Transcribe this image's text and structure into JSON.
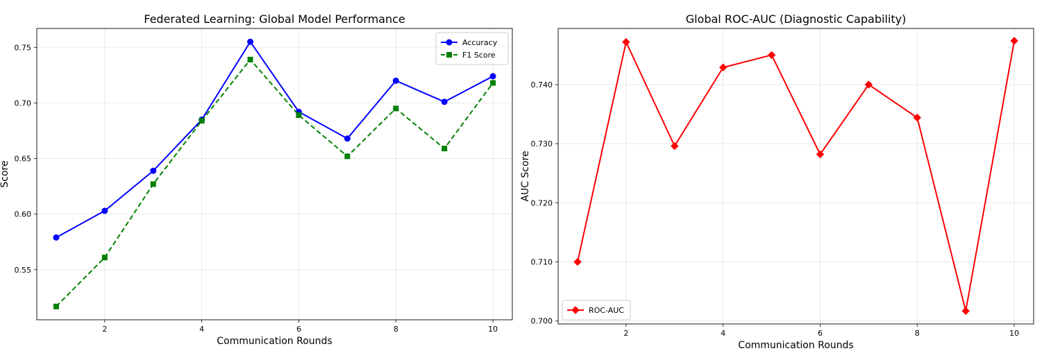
{
  "chart_data": [
    {
      "type": "line",
      "title": "Federated Learning: Global Model Performance",
      "xlabel": "Communication Rounds",
      "ylabel": "Score",
      "x": [
        1,
        2,
        3,
        4,
        5,
        6,
        7,
        8,
        9,
        10
      ],
      "xlim": [
        0.6,
        10.4
      ],
      "ylim": [
        0.505,
        0.767
      ],
      "xticks": [
        2,
        4,
        6,
        8,
        10
      ],
      "yticks": [
        0.55,
        0.6,
        0.65,
        0.7,
        0.75
      ],
      "grid": true,
      "legend_position": "upper right",
      "series": [
        {
          "name": "Accuracy",
          "color": "#0000ff",
          "marker": "circle",
          "linestyle": "solid",
          "values": [
            0.579,
            0.603,
            0.639,
            0.685,
            0.755,
            0.692,
            0.668,
            0.72,
            0.701,
            0.724
          ]
        },
        {
          "name": "F1 Score",
          "color": "#008000",
          "marker": "square",
          "linestyle": "dashed",
          "values": [
            0.517,
            0.561,
            0.627,
            0.684,
            0.739,
            0.689,
            0.652,
            0.695,
            0.659,
            0.718
          ]
        }
      ]
    },
    {
      "type": "line",
      "title": "Global ROC-AUC (Diagnostic Capability)",
      "xlabel": "Communication Rounds",
      "ylabel": "AUC Score",
      "x": [
        1,
        2,
        3,
        4,
        5,
        6,
        7,
        8,
        9,
        10
      ],
      "xlim": [
        0.6,
        10.4
      ],
      "ylim": [
        0.6995,
        0.7495
      ],
      "xticks": [
        2,
        4,
        6,
        8,
        10
      ],
      "yticks": [
        0.7,
        0.71,
        0.72,
        0.73,
        0.74
      ],
      "grid": true,
      "legend_position": "lower left",
      "series": [
        {
          "name": "ROC-AUC",
          "color": "#ff0000",
          "marker": "diamond",
          "linestyle": "solid",
          "values": [
            0.71,
            0.7472,
            0.7296,
            0.7429,
            0.745,
            0.7282,
            0.74,
            0.7344,
            0.7017,
            0.7474
          ]
        }
      ]
    }
  ]
}
